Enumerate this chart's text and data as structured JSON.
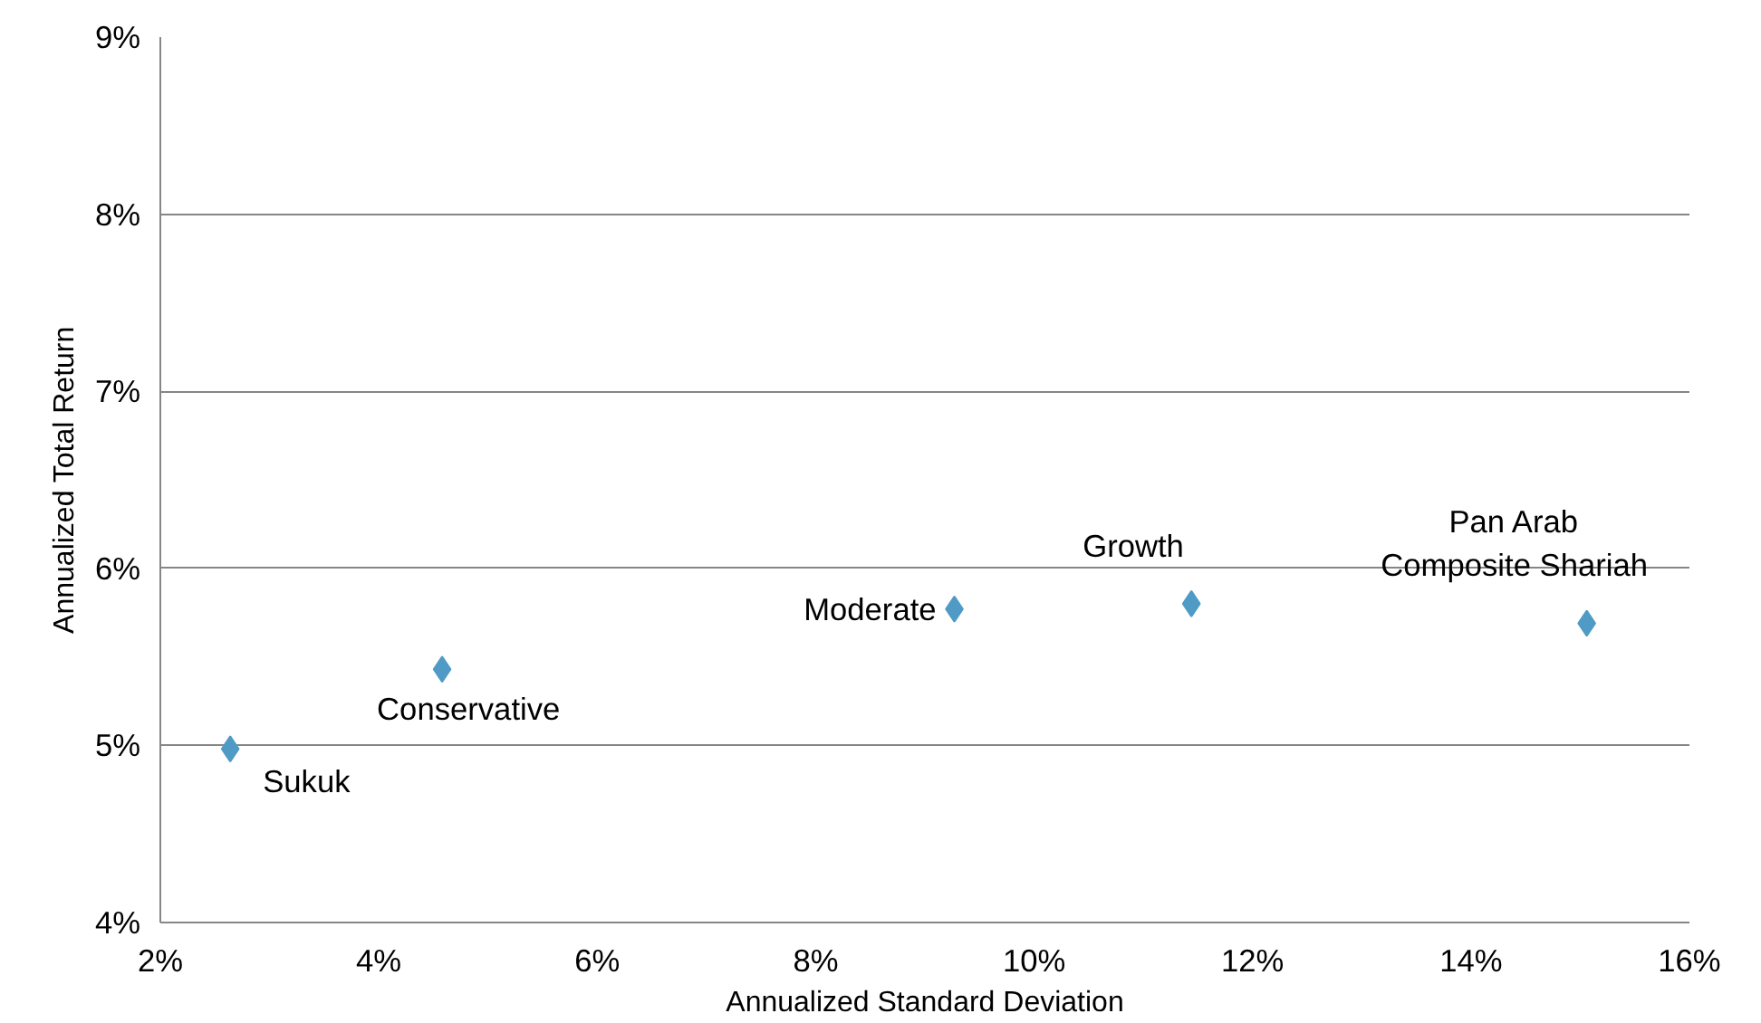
{
  "chart_data": {
    "type": "scatter",
    "xlabel": "Annualized Standard Deviation",
    "ylabel": "Annualized Total Return",
    "x": [
      2.64,
      4.58,
      9.27,
      11.44,
      15.06
    ],
    "series": [
      {
        "color": "#4f9bc6",
        "values": [
          4.98,
          5.43,
          5.77,
          5.8,
          5.69
        ]
      }
    ],
    "marker": "diamond",
    "grid": "y",
    "xlim": [
      2,
      16
    ],
    "ylim": [
      4,
      9
    ],
    "xticks": [
      {
        "value": 2,
        "label": "2%"
      },
      {
        "value": 4,
        "label": "4%"
      },
      {
        "value": 6,
        "label": "6%"
      },
      {
        "value": 8,
        "label": "8%"
      },
      {
        "value": 10,
        "label": "10%"
      },
      {
        "value": 12,
        "label": "12%"
      },
      {
        "value": 14,
        "label": "14%"
      },
      {
        "value": 16,
        "label": "16%"
      }
    ],
    "yticks": [
      {
        "value": 4,
        "label": "4%"
      },
      {
        "value": 5,
        "label": "5%"
      },
      {
        "value": 6,
        "label": "6%"
      },
      {
        "value": 7,
        "label": "7%"
      },
      {
        "value": 8,
        "label": "8%"
      },
      {
        "value": 9,
        "label": "9%"
      }
    ],
    "annotations": [
      {
        "text": "Sukuk",
        "x": 2.64,
        "y": 4.98
      },
      {
        "text": "Conservative",
        "x": 4.58,
        "y": 5.43
      },
      {
        "text": "Moderate",
        "x": 9.27,
        "y": 5.77
      },
      {
        "text": "Growth",
        "x": 11.44,
        "y": 5.8
      },
      {
        "text": "Pan Arab Composite Shariah",
        "x": 15.06,
        "y": 5.69
      }
    ]
  }
}
